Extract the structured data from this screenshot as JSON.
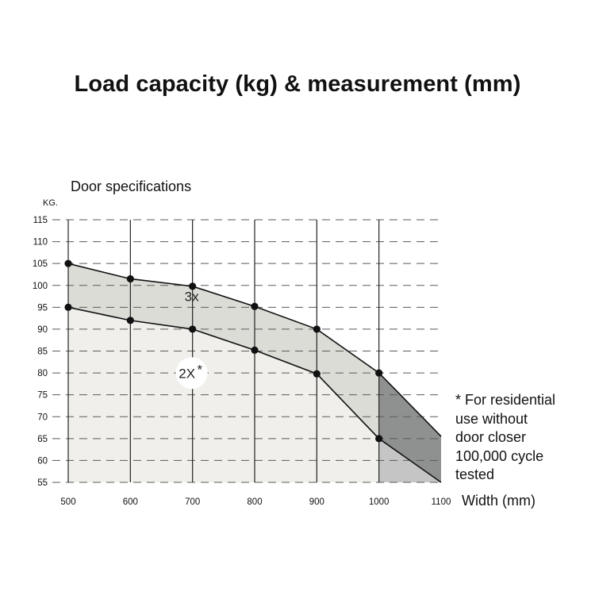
{
  "title": "Load capacity (kg) & measurement (mm)",
  "chart_data": {
    "type": "area",
    "subtitle": "Door specifications",
    "ylabel": "KG.",
    "xlabel": "Width (mm)",
    "x": [
      500,
      600,
      700,
      800,
      900,
      1000,
      1100
    ],
    "xlim": [
      500,
      1100
    ],
    "ylim": [
      55,
      115
    ],
    "y_ticks": [
      55,
      60,
      65,
      70,
      75,
      80,
      85,
      90,
      95,
      100,
      105,
      110,
      115
    ],
    "grid": "dashed horizontal, solid vertical",
    "series": [
      {
        "name": "3x",
        "values": [
          105,
          101.5,
          99.8,
          95.2,
          90.0,
          80.0,
          65.5
        ],
        "fill": "#dcdcd6"
      },
      {
        "name": "2X",
        "values": [
          95,
          92.0,
          90.0,
          85.2,
          79.8,
          65.0,
          55.0
        ],
        "fill": "#f0efeb"
      }
    ],
    "annotations": [
      {
        "text": "3x",
        "x": 700,
        "y": 97.5
      },
      {
        "text": "2X",
        "x": 700,
        "y": 79.6
      },
      {
        "text": "*",
        "x": 713,
        "y": 80.5
      }
    ],
    "shaded_region_from": 1000,
    "shaded_colors": {
      "upper": "#8f9190",
      "lower": "#c4c5c4"
    },
    "footnote": "* For residential\nuse without\ndoor closer\n100,000 cycle\ntested"
  }
}
